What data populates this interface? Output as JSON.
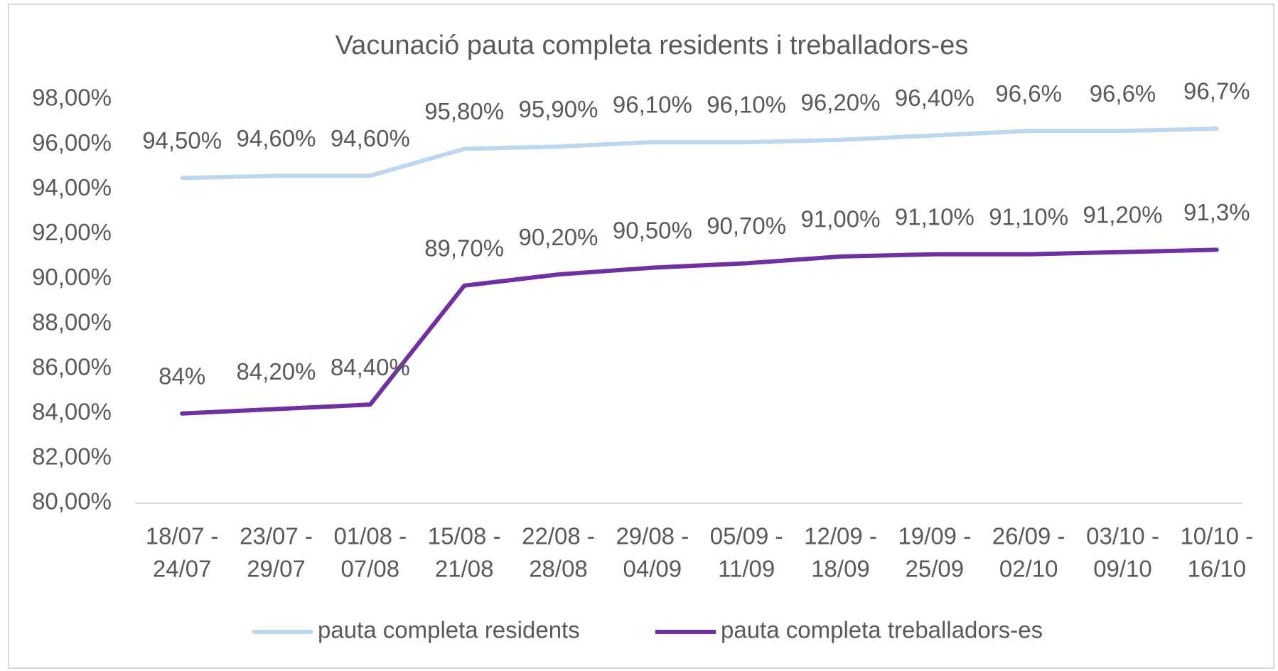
{
  "chart_data": {
    "type": "line",
    "title": "Vacunació pauta completa residents i treballadors-es",
    "categories": [
      [
        "18/07 -",
        "24/07"
      ],
      [
        "23/07 -",
        "29/07"
      ],
      [
        "01/08 -",
        "07/08"
      ],
      [
        "15/08 -",
        "21/08"
      ],
      [
        "22/08 -",
        "28/08"
      ],
      [
        "29/08 -",
        "04/09"
      ],
      [
        "05/09 -",
        "11/09"
      ],
      [
        "12/09 -",
        "18/09"
      ],
      [
        "19/09 -",
        "25/09"
      ],
      [
        "26/09 -",
        "02/10"
      ],
      [
        "03/10 -",
        "09/10"
      ],
      [
        "10/10 -",
        "16/10"
      ]
    ],
    "series": [
      {
        "name": "pauta completa residents",
        "color": "#bdd7ee",
        "values": [
          94.5,
          94.6,
          94.6,
          95.8,
          95.9,
          96.1,
          96.1,
          96.2,
          96.4,
          96.6,
          96.6,
          96.7
        ],
        "value_labels": [
          "94,50%",
          "94,60%",
          "94,60%",
          "95,80%",
          "95,90%",
          "96,10%",
          "96,10%",
          "96,20%",
          "96,40%",
          "96,6%",
          "96,6%",
          "96,7%"
        ]
      },
      {
        "name": "pauta completa treballadors-es",
        "color": "#7030a0",
        "values": [
          84,
          84.2,
          84.4,
          89.7,
          90.2,
          90.5,
          90.7,
          91.0,
          91.1,
          91.1,
          91.2,
          91.3
        ],
        "value_labels": [
          "84%",
          "84,20%",
          "84,40%",
          "89,70%",
          "90,20%",
          "90,50%",
          "90,70%",
          "91,00%",
          "91,10%",
          "91,10%",
          "91,20%",
          "91,3%"
        ]
      }
    ],
    "ylim": [
      80,
      98
    ],
    "yticks": [
      {
        "value": 80,
        "label": "80,00%"
      },
      {
        "value": 82,
        "label": "82,00%"
      },
      {
        "value": 84,
        "label": "84,00%"
      },
      {
        "value": 86,
        "label": "86,00%"
      },
      {
        "value": 88,
        "label": "88,00%"
      },
      {
        "value": 90,
        "label": "90,00%"
      },
      {
        "value": 92,
        "label": "92,00%"
      },
      {
        "value": 94,
        "label": "94,00%"
      },
      {
        "value": 96,
        "label": "96,00%"
      },
      {
        "value": 98,
        "label": "98,00%"
      }
    ],
    "grid": false,
    "legend": "bottom"
  }
}
